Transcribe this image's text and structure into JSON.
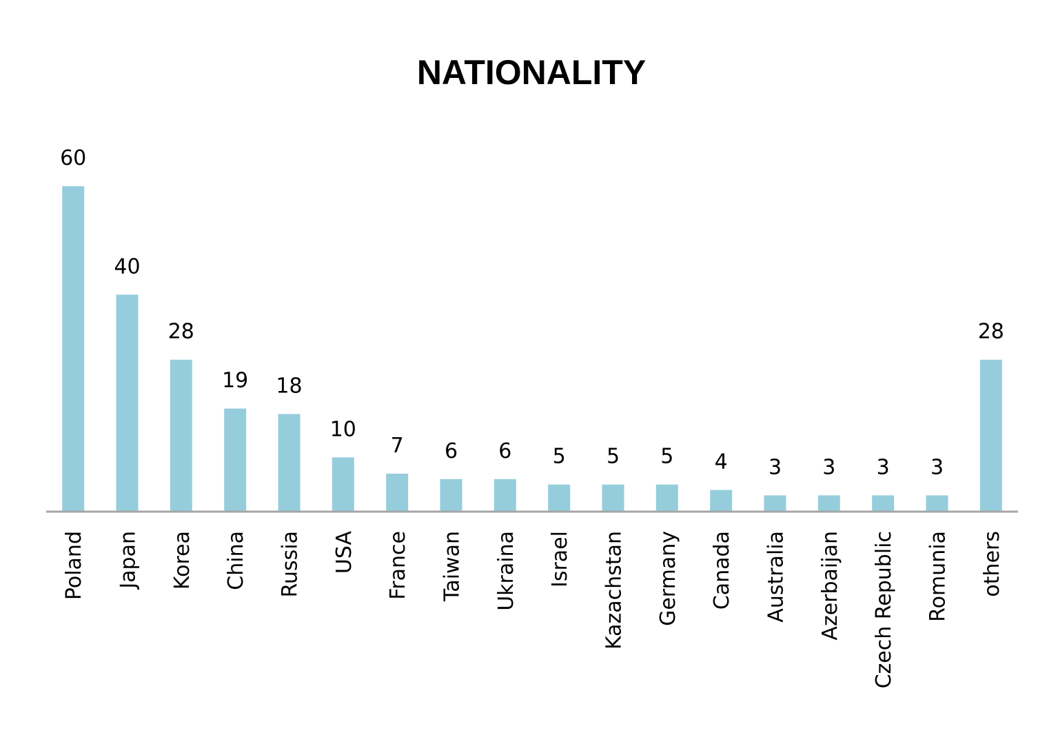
{
  "chart_data": {
    "type": "bar",
    "title": "NATIONALITY",
    "categories": [
      "Poland",
      "Japan",
      "Korea",
      "China",
      "Russia",
      "USA",
      "France",
      "Taiwan",
      "Ukraina",
      "Israel",
      "Kazachstan",
      "Germany",
      "Canada",
      "Australia",
      "Azerbaijan",
      "Czech Republic",
      "Romunia",
      "others"
    ],
    "values": [
      60,
      40,
      28,
      19,
      18,
      10,
      7,
      6,
      6,
      5,
      5,
      5,
      4,
      3,
      3,
      3,
      3,
      28
    ],
    "ylim": [
      0,
      60
    ],
    "xlabel": "",
    "ylabel": "",
    "grid": false,
    "legend": "none",
    "data_labels": true,
    "colors": {
      "bar": "#96CDDC",
      "axis": "#A6A6A6",
      "text": "#000000"
    }
  }
}
